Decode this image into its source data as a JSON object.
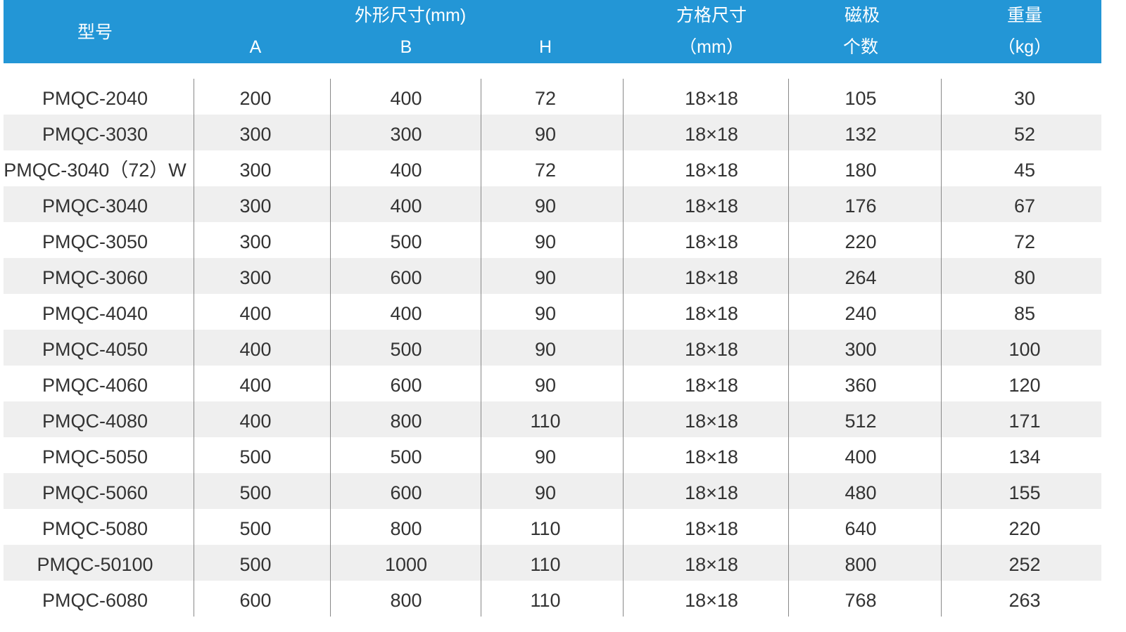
{
  "header": {
    "model": "型号",
    "outer_size": "外形尺寸(mm)",
    "a": "A",
    "b": "B",
    "h": "H",
    "grid_size_1": "方格尺寸",
    "grid_size_2": "（mm）",
    "poles_1": "磁极",
    "poles_2": "个数",
    "weight_1": "重量",
    "weight_2": "（kg）"
  },
  "colors": {
    "header_bg": "#2396d6",
    "stripe": "#efefef",
    "text": "#333333"
  },
  "rows": [
    [
      "PMQC-2040",
      "200",
      "400",
      "72",
      "18×18",
      "105",
      "30"
    ],
    [
      "PMQC-3030",
      "300",
      "300",
      "90",
      "18×18",
      "132",
      "52"
    ],
    [
      "PMQC-3040（72）W",
      "300",
      "400",
      "72",
      "18×18",
      "180",
      "45"
    ],
    [
      "PMQC-3040",
      "300",
      "400",
      "90",
      "18×18",
      "176",
      "67"
    ],
    [
      "PMQC-3050",
      "300",
      "500",
      "90",
      "18×18",
      "220",
      "72"
    ],
    [
      "PMQC-3060",
      "300",
      "600",
      "90",
      "18×18",
      "264",
      "80"
    ],
    [
      "PMQC-4040",
      "400",
      "400",
      "90",
      "18×18",
      "240",
      "85"
    ],
    [
      "PMQC-4050",
      "400",
      "500",
      "90",
      "18×18",
      "300",
      "100"
    ],
    [
      "PMQC-4060",
      "400",
      "600",
      "90",
      "18×18",
      "360",
      "120"
    ],
    [
      "PMQC-4080",
      "400",
      "800",
      "110",
      "18×18",
      "512",
      "171"
    ],
    [
      "PMQC-5050",
      "500",
      "500",
      "90",
      "18×18",
      "400",
      "134"
    ],
    [
      "PMQC-5060",
      "500",
      "600",
      "90",
      "18×18",
      "480",
      "155"
    ],
    [
      "PMQC-5080",
      "500",
      "800",
      "110",
      "18×18",
      "640",
      "220"
    ],
    [
      "PMQC-50100",
      "500",
      "1000",
      "110",
      "18×18",
      "800",
      "252"
    ],
    [
      "PMQC-6080",
      "600",
      "800",
      "110",
      "18×18",
      "768",
      "263"
    ]
  ]
}
